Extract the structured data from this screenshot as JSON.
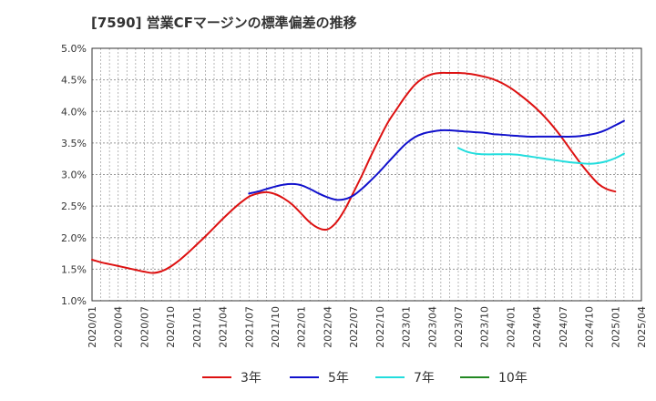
{
  "chart_data": {
    "type": "line",
    "title": "[7590]  営業CFマージンの標準偏差の推移",
    "xlabel": "",
    "ylabel": "",
    "ylim": [
      1.0,
      5.0
    ],
    "y_ticks": [
      "1.0%",
      "1.5%",
      "2.0%",
      "2.5%",
      "3.0%",
      "3.5%",
      "4.0%",
      "4.5%",
      "5.0%"
    ],
    "x_range": [
      "2020-01",
      "2025-04"
    ],
    "x_ticks": [
      "2020/01",
      "2020/04",
      "2020/07",
      "2020/10",
      "2021/01",
      "2021/04",
      "2021/07",
      "2021/10",
      "2022/01",
      "2022/04",
      "2022/07",
      "2022/10",
      "2023/01",
      "2023/04",
      "2023/07",
      "2023/10",
      "2024/01",
      "2024/04",
      "2024/07",
      "2024/10",
      "2025/01",
      "2025/04"
    ],
    "grid": true,
    "legend_position": "bottom",
    "series": [
      {
        "name": "3年",
        "color": "#dd1111",
        "points": [
          [
            "2020-01",
            1.65
          ],
          [
            "2020-02",
            1.61
          ],
          [
            "2020-03",
            1.58
          ],
          [
            "2020-04",
            1.55
          ],
          [
            "2020-05",
            1.52
          ],
          [
            "2020-06",
            1.49
          ],
          [
            "2020-07",
            1.46
          ],
          [
            "2020-08",
            1.44
          ],
          [
            "2020-09",
            1.47
          ],
          [
            "2020-10",
            1.54
          ],
          [
            "2020-11",
            1.64
          ],
          [
            "2020-12",
            1.76
          ],
          [
            "2021-01",
            1.89
          ],
          [
            "2021-02",
            2.02
          ],
          [
            "2021-03",
            2.16
          ],
          [
            "2021-04",
            2.3
          ],
          [
            "2021-05",
            2.43
          ],
          [
            "2021-06",
            2.55
          ],
          [
            "2021-07",
            2.65
          ],
          [
            "2021-08",
            2.7
          ],
          [
            "2021-09",
            2.72
          ],
          [
            "2021-10",
            2.69
          ],
          [
            "2021-11",
            2.62
          ],
          [
            "2021-12",
            2.52
          ],
          [
            "2022-01",
            2.38
          ],
          [
            "2022-02",
            2.24
          ],
          [
            "2022-03",
            2.15
          ],
          [
            "2022-04",
            2.13
          ],
          [
            "2022-05",
            2.24
          ],
          [
            "2022-06",
            2.45
          ],
          [
            "2022-07",
            2.72
          ],
          [
            "2022-08",
            3.0
          ],
          [
            "2022-09",
            3.3
          ],
          [
            "2022-10",
            3.58
          ],
          [
            "2022-11",
            3.84
          ],
          [
            "2022-12",
            4.05
          ],
          [
            "2023-01",
            4.25
          ],
          [
            "2023-02",
            4.42
          ],
          [
            "2023-03",
            4.53
          ],
          [
            "2023-04",
            4.59
          ],
          [
            "2023-05",
            4.61
          ],
          [
            "2023-06",
            4.61
          ],
          [
            "2023-07",
            4.61
          ],
          [
            "2023-08",
            4.6
          ],
          [
            "2023-09",
            4.58
          ],
          [
            "2023-10",
            4.55
          ],
          [
            "2023-11",
            4.51
          ],
          [
            "2023-12",
            4.45
          ],
          [
            "2024-01",
            4.37
          ],
          [
            "2024-02",
            4.27
          ],
          [
            "2024-03",
            4.16
          ],
          [
            "2024-04",
            4.04
          ],
          [
            "2024-05",
            3.9
          ],
          [
            "2024-06",
            3.74
          ],
          [
            "2024-07",
            3.56
          ],
          [
            "2024-08",
            3.37
          ],
          [
            "2024-09",
            3.18
          ],
          [
            "2024-10",
            3.01
          ],
          [
            "2024-11",
            2.86
          ],
          [
            "2024-12",
            2.77
          ],
          [
            "2025-01",
            2.73
          ]
        ]
      },
      {
        "name": "5年",
        "color": "#1111cc",
        "points": [
          [
            "2021-07",
            2.7
          ],
          [
            "2021-08",
            2.73
          ],
          [
            "2021-09",
            2.77
          ],
          [
            "2021-10",
            2.81
          ],
          [
            "2021-11",
            2.84
          ],
          [
            "2021-12",
            2.85
          ],
          [
            "2022-01",
            2.83
          ],
          [
            "2022-02",
            2.77
          ],
          [
            "2022-03",
            2.7
          ],
          [
            "2022-04",
            2.64
          ],
          [
            "2022-05",
            2.6
          ],
          [
            "2022-06",
            2.61
          ],
          [
            "2022-07",
            2.67
          ],
          [
            "2022-08",
            2.78
          ],
          [
            "2022-09",
            2.91
          ],
          [
            "2022-10",
            3.05
          ],
          [
            "2022-11",
            3.2
          ],
          [
            "2022-12",
            3.35
          ],
          [
            "2023-01",
            3.49
          ],
          [
            "2023-02",
            3.59
          ],
          [
            "2023-03",
            3.65
          ],
          [
            "2023-04",
            3.68
          ],
          [
            "2023-05",
            3.7
          ],
          [
            "2023-06",
            3.7
          ],
          [
            "2023-07",
            3.69
          ],
          [
            "2023-08",
            3.68
          ],
          [
            "2023-09",
            3.67
          ],
          [
            "2023-10",
            3.66
          ],
          [
            "2023-11",
            3.64
          ],
          [
            "2023-12",
            3.63
          ],
          [
            "2024-01",
            3.62
          ],
          [
            "2024-02",
            3.61
          ],
          [
            "2024-03",
            3.6
          ],
          [
            "2024-04",
            3.6
          ],
          [
            "2024-05",
            3.6
          ],
          [
            "2024-06",
            3.6
          ],
          [
            "2024-07",
            3.6
          ],
          [
            "2024-08",
            3.6
          ],
          [
            "2024-09",
            3.61
          ],
          [
            "2024-10",
            3.63
          ],
          [
            "2024-11",
            3.66
          ],
          [
            "2024-12",
            3.71
          ],
          [
            "2025-01",
            3.78
          ],
          [
            "2025-02",
            3.85
          ]
        ]
      },
      {
        "name": "7年",
        "color": "#22dddd",
        "points": [
          [
            "2023-07",
            3.42
          ],
          [
            "2023-08",
            3.36
          ],
          [
            "2023-09",
            3.33
          ],
          [
            "2023-10",
            3.32
          ],
          [
            "2023-11",
            3.32
          ],
          [
            "2023-12",
            3.32
          ],
          [
            "2024-01",
            3.32
          ],
          [
            "2024-02",
            3.31
          ],
          [
            "2024-03",
            3.29
          ],
          [
            "2024-04",
            3.27
          ],
          [
            "2024-05",
            3.25
          ],
          [
            "2024-06",
            3.23
          ],
          [
            "2024-07",
            3.21
          ],
          [
            "2024-08",
            3.19
          ],
          [
            "2024-09",
            3.18
          ],
          [
            "2024-10",
            3.17
          ],
          [
            "2024-11",
            3.18
          ],
          [
            "2024-12",
            3.21
          ],
          [
            "2025-01",
            3.26
          ],
          [
            "2025-02",
            3.33
          ]
        ]
      },
      {
        "name": "10年",
        "color": "#228822",
        "points": []
      }
    ]
  }
}
